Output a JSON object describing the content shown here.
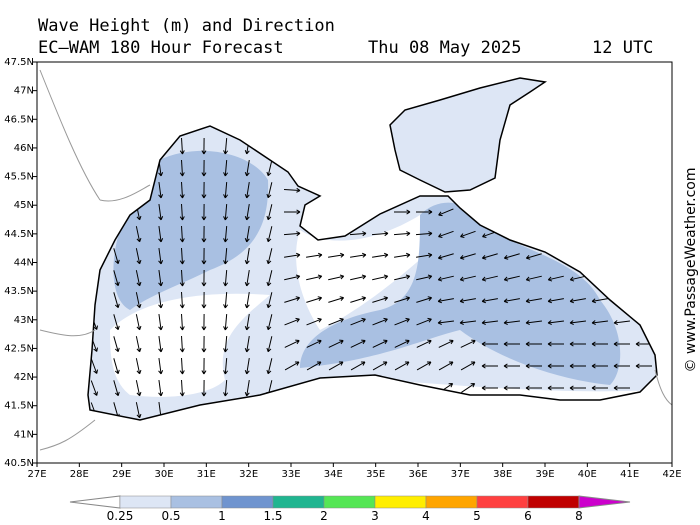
{
  "header": {
    "title": "Wave Height (m) and Direction",
    "model": "EC–WAM 180 Hour Forecast",
    "date": "Thu 08 May 2025",
    "time": "12 UTC"
  },
  "axes": {
    "lat_labels": [
      "47.5N",
      "47N",
      "46.5N",
      "46N",
      "45.5N",
      "45N",
      "44.5N",
      "44N",
      "43.5N",
      "43N",
      "42.5N",
      "42N",
      "41.5N",
      "41N",
      "40.5N"
    ],
    "lon_labels": [
      "27E",
      "28E",
      "29E",
      "30E",
      "31E",
      "32E",
      "33E",
      "34E",
      "35E",
      "36E",
      "37E",
      "38E",
      "39E",
      "40E",
      "41E",
      "42E"
    ]
  },
  "legend": {
    "labels": [
      "0.25",
      "0.5",
      "1",
      "1.5",
      "2",
      "3",
      "4",
      "5",
      "6",
      "8"
    ]
  },
  "watermark": "© www.PassageWeather.com"
}
